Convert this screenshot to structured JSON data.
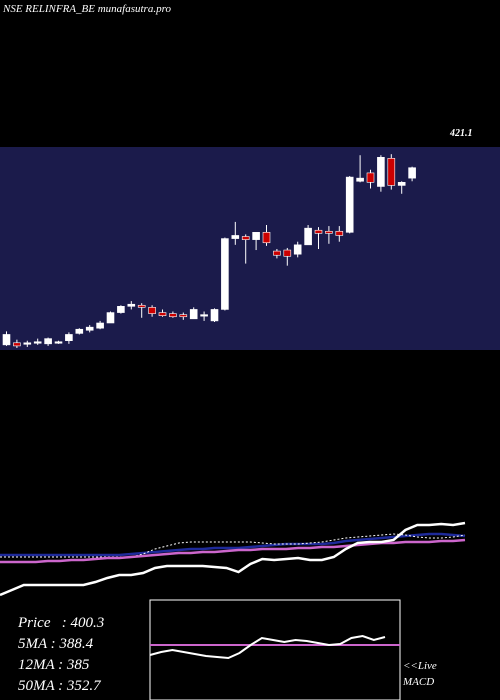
{
  "header": {
    "title": "NSE RELINFRA_BE munafasutra.pro",
    "price_label": "421.1"
  },
  "stats": {
    "price": "Price   : 400.3",
    "ma5": "5MA : 388.4",
    "ma12": "12MA : 385",
    "ma50": "50MA : 352.7"
  },
  "links": {
    "live": "<<Live",
    "macd": "MACD"
  },
  "colors": {
    "panel_bg": "#1b1b4b",
    "up": "#ffffff",
    "down": "#cc0000",
    "ma_blue": "#1e2a9a",
    "ma_purple": "#cc66cc",
    "ma_white": "#ffffff"
  },
  "chart_data": {
    "type": "candlestick",
    "title": "NSE RELINFRA_BE munafasutra.pro",
    "ylim": [
      240,
      430
    ],
    "candles": [
      {
        "o": 243,
        "h": 256,
        "l": 242,
        "c": 253
      },
      {
        "o": 245,
        "h": 248,
        "l": 240,
        "c": 242
      },
      {
        "o": 244,
        "h": 247,
        "l": 241,
        "c": 245
      },
      {
        "o": 245,
        "h": 249,
        "l": 243,
        "c": 246
      },
      {
        "o": 244,
        "h": 250,
        "l": 242,
        "c": 249
      },
      {
        "o": 245,
        "h": 247,
        "l": 244,
        "c": 246
      },
      {
        "o": 247,
        "h": 255,
        "l": 244,
        "c": 253
      },
      {
        "o": 254,
        "h": 259,
        "l": 253,
        "c": 258
      },
      {
        "o": 257,
        "h": 262,
        "l": 255,
        "c": 260
      },
      {
        "o": 259,
        "h": 266,
        "l": 258,
        "c": 264
      },
      {
        "o": 264,
        "h": 275,
        "l": 264,
        "c": 274
      },
      {
        "o": 274,
        "h": 281,
        "l": 273,
        "c": 280
      },
      {
        "o": 280,
        "h": 285,
        "l": 277,
        "c": 282
      },
      {
        "o": 281,
        "h": 283,
        "l": 269,
        "c": 279
      },
      {
        "o": 279,
        "h": 281,
        "l": 270,
        "c": 273
      },
      {
        "o": 274,
        "h": 277,
        "l": 270,
        "c": 271
      },
      {
        "o": 273,
        "h": 275,
        "l": 269,
        "c": 270
      },
      {
        "o": 272,
        "h": 274,
        "l": 267,
        "c": 270
      },
      {
        "o": 268,
        "h": 279,
        "l": 268,
        "c": 277
      },
      {
        "o": 272,
        "h": 275,
        "l": 266,
        "c": 272
      },
      {
        "o": 266,
        "h": 278,
        "l": 265,
        "c": 277
      },
      {
        "o": 277,
        "h": 346,
        "l": 276,
        "c": 345
      },
      {
        "o": 345,
        "h": 361,
        "l": 339,
        "c": 348
      },
      {
        "o": 347,
        "h": 349,
        "l": 321,
        "c": 344
      },
      {
        "o": 344,
        "h": 350,
        "l": 334,
        "c": 351
      },
      {
        "o": 351,
        "h": 358,
        "l": 338,
        "c": 341
      },
      {
        "o": 333,
        "h": 335,
        "l": 326,
        "c": 329
      },
      {
        "o": 334,
        "h": 336,
        "l": 319,
        "c": 328
      },
      {
        "o": 330,
        "h": 342,
        "l": 327,
        "c": 339
      },
      {
        "o": 339,
        "h": 358,
        "l": 340,
        "c": 355
      },
      {
        "o": 353,
        "h": 356,
        "l": 335,
        "c": 350
      },
      {
        "o": 352,
        "h": 357,
        "l": 340,
        "c": 350
      },
      {
        "o": 352,
        "h": 357,
        "l": 342,
        "c": 348
      },
      {
        "o": 351,
        "h": 405,
        "l": 350,
        "c": 404
      },
      {
        "o": 400,
        "h": 425,
        "l": 399,
        "c": 403
      },
      {
        "o": 408,
        "h": 411,
        "l": 393,
        "c": 399
      },
      {
        "o": 395,
        "h": 425,
        "l": 390,
        "c": 423
      },
      {
        "o": 422,
        "h": 426,
        "l": 392,
        "c": 396
      },
      {
        "o": 396,
        "h": 400,
        "l": 388,
        "c": 399
      },
      {
        "o": 403,
        "h": 414,
        "l": 400,
        "c": 413
      }
    ],
    "ma_lines": [
      {
        "color": "#1e2a9a",
        "values": [
          305,
          305,
          305,
          305,
          305,
          305,
          305,
          305,
          305,
          305,
          305,
          306,
          307,
          308,
          309,
          310,
          311,
          311,
          312,
          312,
          312,
          313,
          314,
          315,
          316,
          316,
          316,
          316,
          317,
          319,
          320,
          321,
          322,
          323,
          324,
          325,
          326,
          326,
          325,
          324
        ]
      },
      {
        "color": "#ffffff",
        "dashed": true,
        "values": [
          303,
          303,
          303,
          303,
          303,
          303,
          303,
          303,
          303,
          303,
          303,
          303,
          306,
          311,
          314,
          317,
          318,
          318,
          318,
          318,
          318,
          318,
          317,
          316,
          316,
          316,
          317,
          318,
          320,
          322,
          323,
          324,
          325,
          326,
          325,
          323,
          322,
          322,
          323,
          325
        ]
      },
      {
        "color": "#cc66cc",
        "values": [
          298,
          298,
          298,
          298,
          299,
          299,
          300,
          300,
          301,
          302,
          302,
          303,
          304,
          305,
          306,
          307,
          307,
          308,
          308,
          309,
          310,
          310,
          311,
          311,
          311,
          312,
          312,
          313,
          313,
          314,
          315,
          316,
          317,
          317,
          318,
          318,
          318,
          319,
          319,
          320
        ]
      },
      {
        "color": "#ffffff",
        "values": [
          265,
          270,
          275,
          275,
          275,
          275,
          275,
          275,
          278,
          282,
          285,
          285,
          287,
          292,
          294,
          294,
          294,
          294,
          293,
          292,
          288,
          296,
          301,
          300,
          301,
          302,
          300,
          300,
          303,
          311,
          317,
          318,
          318,
          320,
          330,
          335,
          335,
          336,
          335,
          337
        ]
      }
    ],
    "macd": [
      0.45,
      0.48,
      0.5,
      0.48,
      0.46,
      0.44,
      0.43,
      0.42,
      0.47,
      0.55,
      0.62,
      0.6,
      0.58,
      0.6,
      0.59,
      0.57,
      0.55,
      0.56,
      0.62,
      0.64,
      0.6,
      0.63
    ],
    "macd_signal": 0.55
  }
}
